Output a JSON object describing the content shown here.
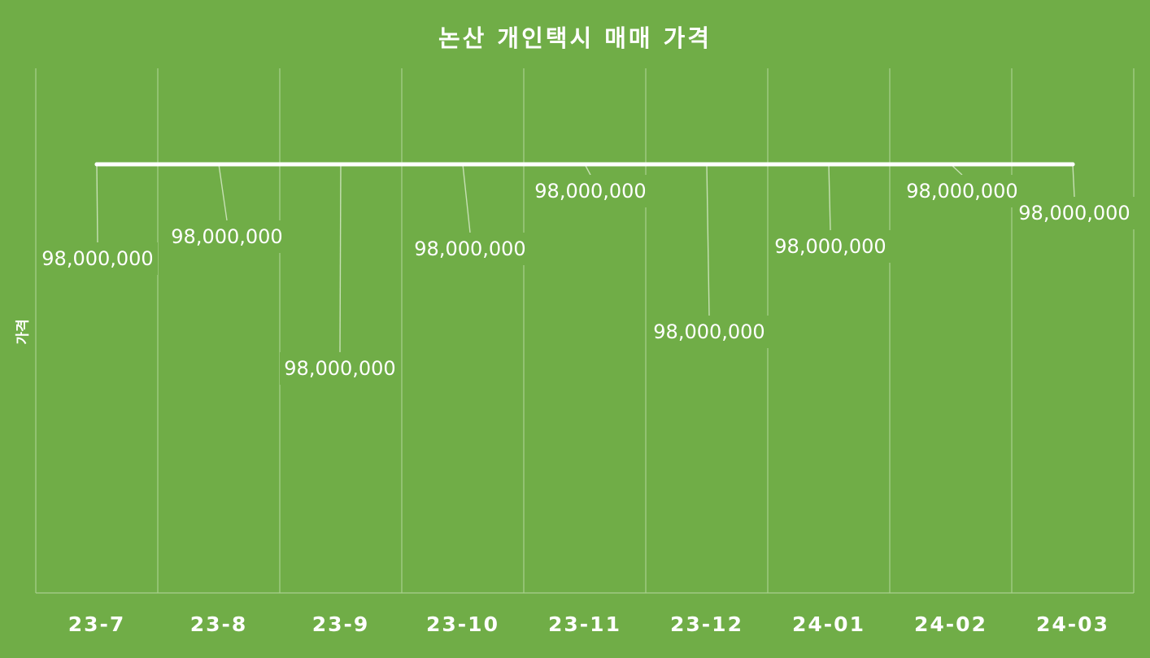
{
  "chart_data": {
    "type": "line",
    "title": "논산 개인택시 매매 가격",
    "xlabel": "",
    "ylabel": "가격",
    "categories": [
      "23-7",
      "23-8",
      "23-9",
      "23-10",
      "23-11",
      "23-12",
      "24-01",
      "24-02",
      "24-03"
    ],
    "series": [
      {
        "values": [
          98000000,
          98000000,
          98000000,
          98000000,
          98000000,
          98000000,
          98000000,
          98000000,
          98000000
        ],
        "data_labels": [
          "98,000,000",
          "98,000,000",
          "98,000,000",
          "98,000,000",
          "98,000,000",
          "98,000,000",
          "98,000,000",
          "98,000,000",
          "98,000,000"
        ],
        "color": "#ffffff"
      }
    ],
    "grid": "vertical",
    "legend": "none"
  },
  "colors": {
    "background": "#70ad47",
    "line": "#ffffff",
    "gridline": "#a9d08e"
  }
}
